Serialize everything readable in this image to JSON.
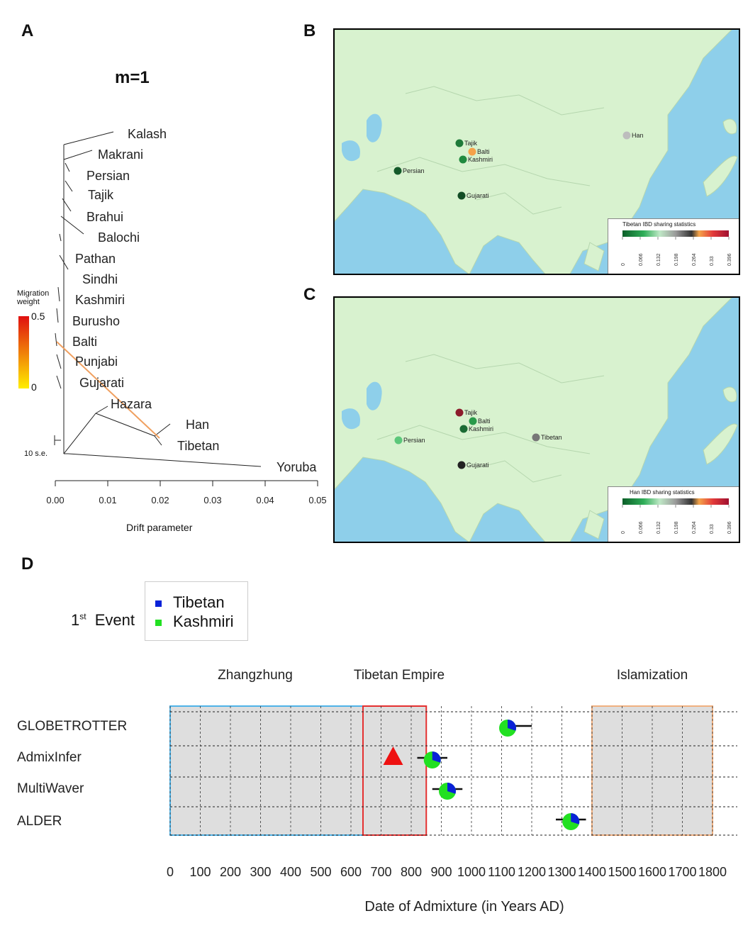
{
  "panels": {
    "a": "A",
    "b": "B",
    "c": "C",
    "d": "D"
  },
  "panelA": {
    "title": "m=1",
    "populations": [
      {
        "name": "Kalash"
      },
      {
        "name": "Makrani"
      },
      {
        "name": "Persian"
      },
      {
        "name": "Tajik"
      },
      {
        "name": "Brahui"
      },
      {
        "name": "Balochi"
      },
      {
        "name": "Pathan"
      },
      {
        "name": "Sindhi"
      },
      {
        "name": "Kashmiri"
      },
      {
        "name": "Burusho"
      },
      {
        "name": "Balti"
      },
      {
        "name": "Punjabi"
      },
      {
        "name": "Gujarati"
      },
      {
        "name": "Hazara"
      },
      {
        "name": "Han"
      },
      {
        "name": "Tibetan"
      },
      {
        "name": "Yoruba"
      }
    ],
    "migration_label_1": "Migration",
    "migration_label_2": "weight",
    "migration_max": "0.5",
    "migration_min": "0",
    "se_label": "10 s.e.",
    "x_ticks": [
      "0.00",
      "0.01",
      "0.02",
      "0.03",
      "0.04",
      "0.05"
    ],
    "xlabel": "Drift parameter",
    "colors": {
      "migration_high": "#e01010",
      "migration_low": "#ffee00",
      "migration_edge": "#f0a060"
    }
  },
  "panelB": {
    "legend_title": "Tibetan IBD sharing statistics",
    "legend_ticks": [
      "0",
      "0.066",
      "0.132",
      "0.198",
      "0.264",
      "0.33",
      "0.396"
    ],
    "points": [
      {
        "name": "Tajik",
        "color": "#1f7a3a"
      },
      {
        "name": "Balti",
        "color": "#f5a24a"
      },
      {
        "name": "Kashmiri",
        "color": "#1f8a3e"
      },
      {
        "name": "Persian",
        "color": "#145a2a"
      },
      {
        "name": "Gujarati",
        "color": "#124d25"
      },
      {
        "name": "Han",
        "color": "#bdbdbd"
      }
    ]
  },
  "panelC": {
    "legend_title": "Han IBD sharing statistics",
    "legend_ticks": [
      "0",
      "0.066",
      "0.132",
      "0.198",
      "0.264",
      "0.33",
      "0.396"
    ],
    "points": [
      {
        "name": "Tajik",
        "color": "#8c1c2c"
      },
      {
        "name": "Balti",
        "color": "#2a9a4a"
      },
      {
        "name": "Kashmiri",
        "color": "#1b6b34"
      },
      {
        "name": "Persian",
        "color": "#5cc77a"
      },
      {
        "name": "Gujarati",
        "color": "#222222"
      },
      {
        "name": "Tibetan",
        "color": "#777777"
      }
    ]
  },
  "panelD": {
    "event_label_main": "1",
    "event_label_sup": "st",
    "event_label_rest": "Event",
    "legend": [
      {
        "name": "Tibetan",
        "color": "#0a22d8"
      },
      {
        "name": "Kashmiri",
        "color": "#22e022"
      }
    ],
    "periods": [
      {
        "name": "Zhangzhung",
        "start": 0,
        "end": 640,
        "color": "#4fb3e8"
      },
      {
        "name": "Tibetan Empire",
        "start": 640,
        "end": 850,
        "color": "#e53030"
      },
      {
        "name": "Islamization",
        "start": 1400,
        "end": 1800,
        "color": "#f0b080"
      }
    ],
    "xlabel": "Date of Admixture (in Years AD)",
    "x_ticks": [
      "0",
      "100",
      "200",
      "300",
      "400",
      "500",
      "600",
      "700",
      "800",
      "900",
      "1000",
      "1100",
      "1200",
      "1300",
      "1400",
      "1500",
      "1600",
      "1700",
      "1800"
    ]
  },
  "chart_data": {
    "type": "scatter",
    "title": "",
    "xlabel": "Date of Admixture (in Years AD)",
    "ylabel": "",
    "xlim": [
      0,
      1800
    ],
    "categories": [
      "GLOBETROTTER",
      "AdmixInfer",
      "MultiWaver",
      "ALDER"
    ],
    "points": [
      {
        "method": "GLOBETROTTER",
        "x": 1120,
        "ci": [
          1100,
          1200
        ],
        "tibetan_fraction": 0.3
      },
      {
        "method": "AdmixInfer",
        "x": 870,
        "ci": [
          820,
          920
        ],
        "tibetan_fraction": 0.3
      },
      {
        "method": "MultiWaver",
        "x": 920,
        "ci": [
          870,
          970
        ],
        "tibetan_fraction": 0.3
      },
      {
        "method": "ALDER",
        "x": 1330,
        "ci": [
          1280,
          1380
        ],
        "tibetan_fraction": 0.3
      }
    ],
    "marker": {
      "method": "AdmixInfer",
      "x": 740,
      "shape": "triangle",
      "color": "#ee1111"
    }
  }
}
